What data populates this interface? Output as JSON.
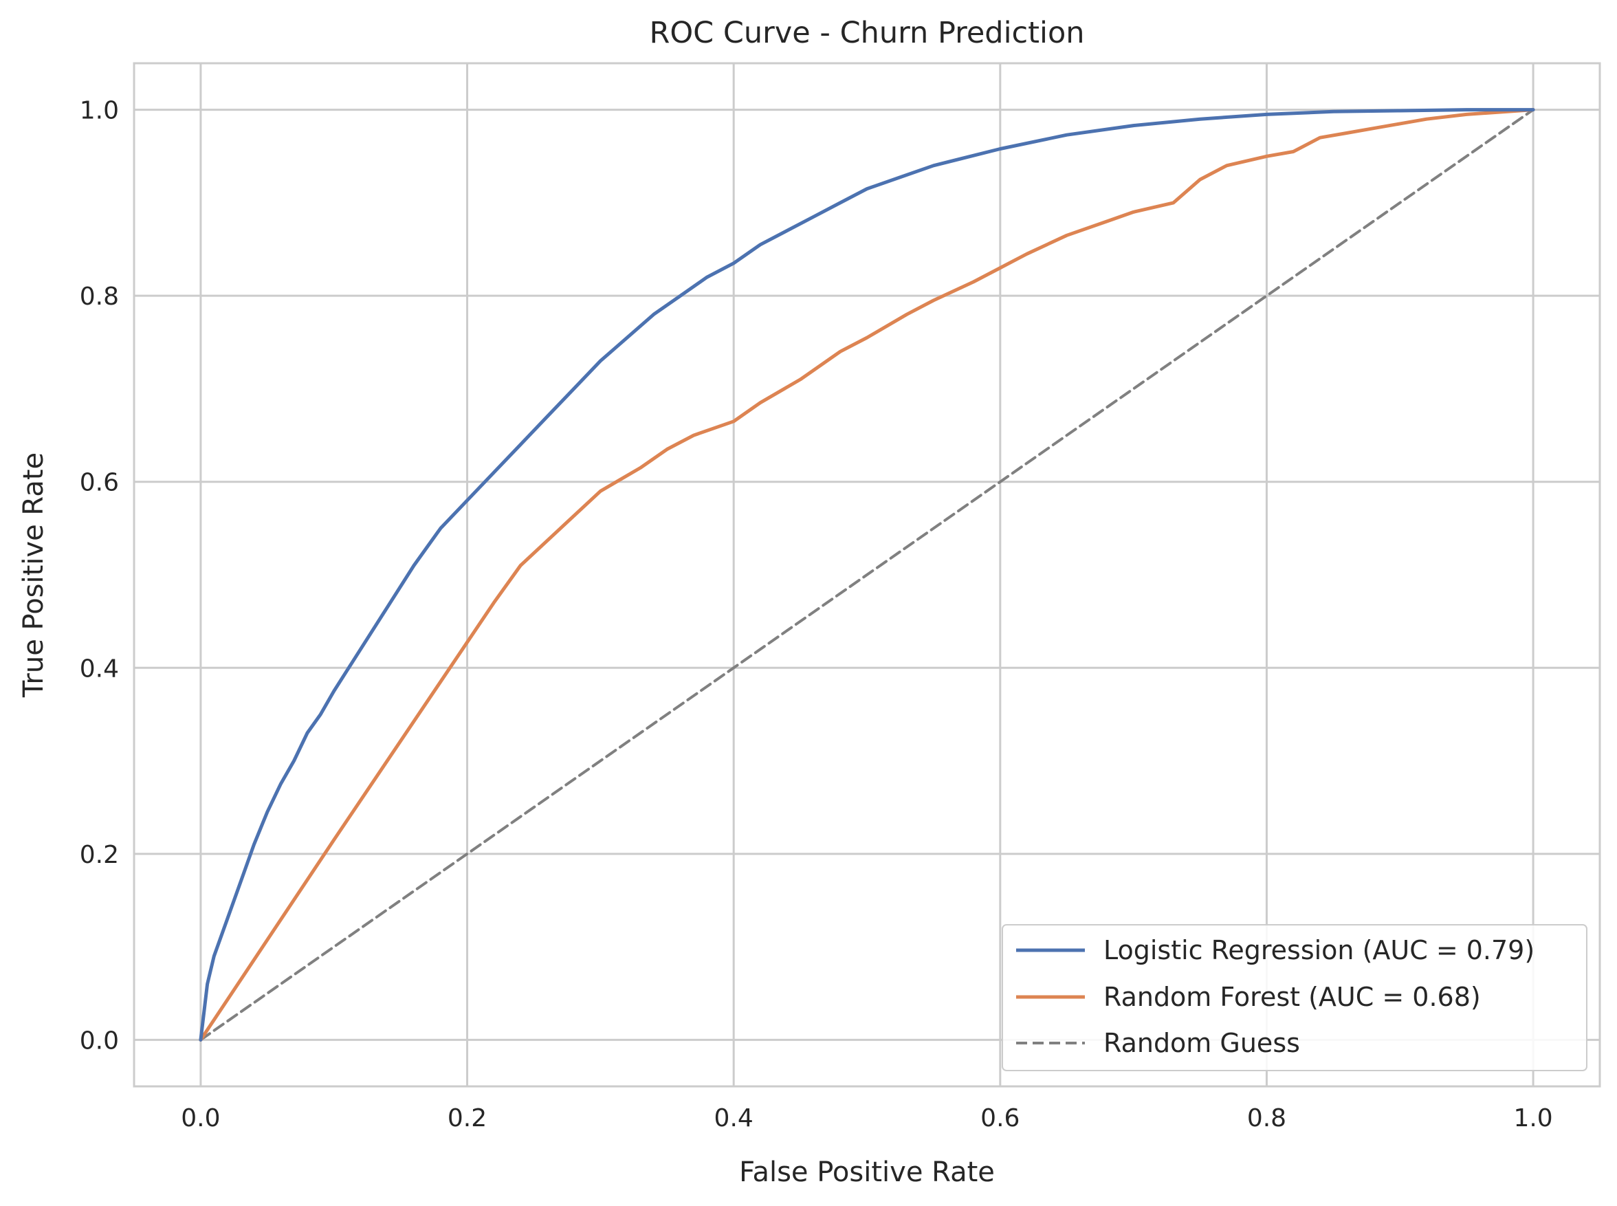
{
  "chart_data": {
    "type": "line",
    "title": "ROC Curve - Churn Prediction",
    "xlabel": "False Positive Rate",
    "ylabel": "True Positive Rate",
    "xlim": [
      -0.05,
      1.05
    ],
    "ylim": [
      -0.05,
      1.05
    ],
    "xticks": [
      0.0,
      0.2,
      0.4,
      0.6,
      0.8,
      1.0
    ],
    "yticks": [
      0.0,
      0.2,
      0.4,
      0.6,
      0.8,
      1.0
    ],
    "xtick_labels": [
      "0.0",
      "0.2",
      "0.4",
      "0.6",
      "0.8",
      "1.0"
    ],
    "ytick_labels": [
      "0.0",
      "0.2",
      "0.4",
      "0.6",
      "0.8",
      "1.0"
    ],
    "grid": true,
    "legend_position": "lower-right",
    "series": [
      {
        "name": "Logistic Regression (AUC = 0.79)",
        "color": "#4c72b0",
        "style": "solid",
        "x": [
          0,
          0.005,
          0.01,
          0.02,
          0.03,
          0.04,
          0.05,
          0.06,
          0.07,
          0.08,
          0.09,
          0.1,
          0.12,
          0.14,
          0.16,
          0.18,
          0.2,
          0.22,
          0.24,
          0.26,
          0.28,
          0.3,
          0.32,
          0.34,
          0.36,
          0.38,
          0.4,
          0.42,
          0.44,
          0.46,
          0.48,
          0.5,
          0.55,
          0.6,
          0.65,
          0.7,
          0.75,
          0.8,
          0.85,
          0.9,
          0.95,
          1.0
        ],
        "y": [
          0,
          0.06,
          0.09,
          0.13,
          0.17,
          0.21,
          0.245,
          0.275,
          0.3,
          0.33,
          0.35,
          0.375,
          0.42,
          0.465,
          0.51,
          0.55,
          0.58,
          0.61,
          0.64,
          0.67,
          0.7,
          0.73,
          0.755,
          0.78,
          0.8,
          0.82,
          0.835,
          0.855,
          0.87,
          0.885,
          0.9,
          0.915,
          0.94,
          0.958,
          0.973,
          0.983,
          0.99,
          0.995,
          0.998,
          0.999,
          1.0,
          1.0
        ]
      },
      {
        "name": "Random Forest (AUC = 0.68)",
        "color": "#dd8452",
        "style": "solid",
        "x": [
          0,
          0.1,
          0.22,
          0.24,
          0.27,
          0.3,
          0.33,
          0.35,
          0.37,
          0.4,
          0.42,
          0.45,
          0.48,
          0.5,
          0.53,
          0.55,
          0.58,
          0.6,
          0.62,
          0.65,
          0.68,
          0.7,
          0.73,
          0.75,
          0.77,
          0.8,
          0.82,
          0.84,
          0.86,
          0.88,
          0.9,
          0.92,
          0.95,
          1.0
        ],
        "y": [
          0,
          0.215,
          0.47,
          0.51,
          0.55,
          0.59,
          0.615,
          0.635,
          0.65,
          0.665,
          0.685,
          0.71,
          0.74,
          0.755,
          0.78,
          0.795,
          0.815,
          0.83,
          0.845,
          0.865,
          0.88,
          0.89,
          0.9,
          0.925,
          0.94,
          0.95,
          0.955,
          0.97,
          0.975,
          0.98,
          0.985,
          0.99,
          0.995,
          1.0
        ]
      },
      {
        "name": "Random Guess",
        "color": "#808080",
        "style": "dashed",
        "x": [
          0,
          1
        ],
        "y": [
          0,
          1
        ]
      }
    ]
  }
}
